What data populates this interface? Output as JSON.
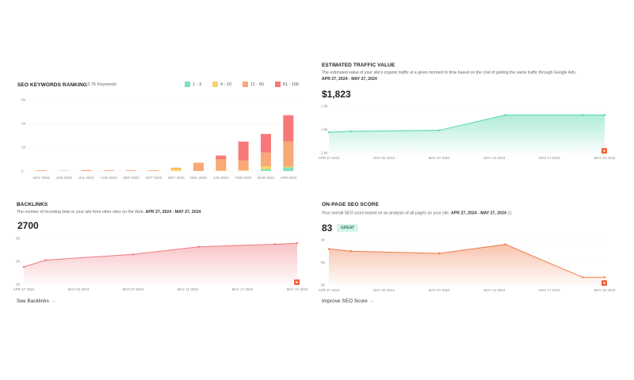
{
  "keywords": {
    "title": "SEO KEYWORDS RANKING",
    "count": "3.7K Keywords",
    "legend": [
      {
        "label": "1 - 3",
        "color": "#7de3b8"
      },
      {
        "label": "4 - 10",
        "color": "#f8d36a"
      },
      {
        "label": "11 - 50",
        "color": "#f9a877"
      },
      {
        "label": "51 - 100",
        "color": "#f8787a"
      }
    ]
  },
  "traffic": {
    "title": "ESTIMATED TRAFFIC VALUE",
    "description": "The estimated value of your site's organic traffic at a given moment in time based on the cost of getting the same traffic through Google Ads.",
    "range": "APR 27, 2024 - MAY 27, 2024",
    "value": "$1,823"
  },
  "backlinks": {
    "title": "BACKLINKS",
    "description": "The number of incoming links to your site from other sites on the Web.",
    "range": "APR 27, 2024 - MAY 27, 2024",
    "value": "2700",
    "link": "See Backlinks"
  },
  "seo": {
    "title": "ON-PAGE SEO SCORE",
    "description": "Your overall SEO score based on an analysis of all pages on your site.",
    "range": "APR 27, 2024 - MAY 27, 2024",
    "value": "83",
    "badge": "GREAT",
    "link": "Improve SEO Score"
  },
  "chart_data": [
    {
      "type": "bar",
      "stacked": true,
      "categories": [
        "MAY 2023",
        "JUN 2023",
        "JUL 2023",
        "AUG 2023",
        "SEP 2023",
        "OCT 2023",
        "NOV 2023",
        "DEC 2023",
        "JAN 2024",
        "FEB 2024",
        "MAR 2024",
        "APR 2024"
      ],
      "yticks": [
        "0",
        "1K",
        "2K",
        "3K"
      ],
      "ylim": [
        0,
        3000
      ],
      "series": [
        {
          "name": "1 - 3",
          "values": [
            0,
            0,
            0,
            0,
            0,
            0,
            0,
            0,
            0,
            0,
            80,
            150
          ]
        },
        {
          "name": "4 - 10",
          "values": [
            0,
            0,
            0,
            0,
            0,
            0,
            100,
            0,
            20,
            40,
            120,
            50
          ]
        },
        {
          "name": "11 - 50",
          "values": [
            30,
            15,
            40,
            30,
            30,
            30,
            40,
            350,
            480,
            400,
            580,
            1050
          ]
        },
        {
          "name": "51 - 100",
          "values": [
            0,
            0,
            0,
            0,
            0,
            0,
            0,
            0,
            150,
            800,
            780,
            1100
          ]
        }
      ]
    },
    {
      "type": "area",
      "x": [
        "2024-04-27",
        "2024-04-29",
        "2024-05-07",
        "2024-05-13",
        "2024-05-20",
        "2024-05-22"
      ],
      "y": [
        1.44,
        1.46,
        1.48,
        1.81,
        1.81,
        1.81
      ],
      "yticks": [
        "1.0k",
        "1.5k",
        "2.0k"
      ],
      "ylim": [
        1.0,
        2.0
      ],
      "xticks": [
        "APR 27 2024",
        "MAY 02 2024",
        "MAY 07 2024",
        "MAY 12 2024",
        "MAY 17 2024",
        "MAY 22 2024"
      ],
      "color": "#4fd6a5"
    },
    {
      "type": "area",
      "x": [
        "2024-04-27",
        "2024-04-29",
        "2024-05-07",
        "2024-05-13",
        "2024-05-20",
        "2024-05-22"
      ],
      "y": [
        1750,
        2050,
        2300,
        2630,
        2740,
        2790
      ],
      "yticks": [
        "1K",
        "2K",
        "3K"
      ],
      "ylim": [
        1000,
        3000
      ],
      "xticks": [
        "APR 27 2024",
        "MAY 02 2024",
        "MAY 07 2024",
        "MAY 12 2024",
        "MAY 17 2024",
        "MAY 22 2024"
      ],
      "color": "#f07a80"
    },
    {
      "type": "area",
      "x": [
        "2024-04-27",
        "2024-04-29",
        "2024-05-07",
        "2024-05-13",
        "2024-05-20",
        "2024-05-22"
      ],
      "y": [
        88,
        87.5,
        87,
        89,
        81.7,
        81.7
      ],
      "yticks": [
        "80",
        "85",
        "90"
      ],
      "ylim": [
        80,
        90
      ],
      "xticks": [
        "APR 27 2024",
        "MAY 02 2024",
        "MAY 07 2024",
        "MAY 12 2024",
        "MAY 17 2024",
        "MAY 22 2024"
      ],
      "color": "#f07a4a"
    }
  ]
}
